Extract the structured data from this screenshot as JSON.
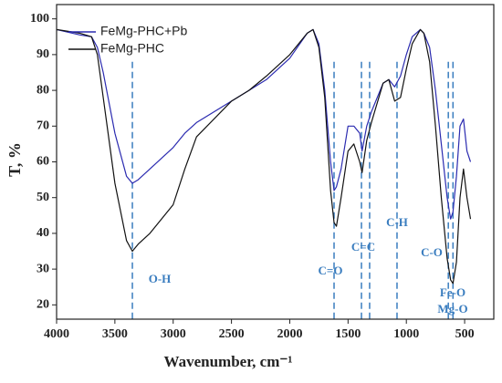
{
  "chart_data": {
    "type": "line",
    "xlabel": "Wavenumber, cm⁻¹",
    "ylabel": "T, %",
    "xlim": [
      4000,
      250
    ],
    "ylim": [
      16,
      104
    ],
    "xticks": [
      4000,
      3500,
      3000,
      2500,
      2000,
      1500,
      1000,
      500
    ],
    "yticks": [
      20,
      30,
      40,
      50,
      60,
      70,
      80,
      90,
      100
    ],
    "legend": "upper left",
    "x": [
      4000,
      3800,
      3700,
      3650,
      3600,
      3500,
      3400,
      3350,
      3300,
      3200,
      3000,
      2900,
      2800,
      2500,
      2350,
      2200,
      2000,
      1850,
      1800,
      1750,
      1700,
      1650,
      1620,
      1600,
      1560,
      1500,
      1450,
      1400,
      1380,
      1340,
      1300,
      1200,
      1150,
      1100,
      1050,
      1000,
      950,
      880,
      850,
      800,
      750,
      700,
      650,
      620,
      600,
      570,
      540,
      510,
      480,
      450
    ],
    "series": [
      {
        "name": "FeMg-PHC+Pb",
        "color": "#2b2bb0",
        "values": [
          97,
          95.5,
          95,
          92,
          85,
          68,
          56,
          54,
          55,
          58,
          64,
          68,
          71,
          77,
          80,
          83,
          89,
          96,
          97,
          93,
          80,
          60,
          52,
          53,
          58,
          70,
          70,
          68,
          63,
          70,
          74,
          82,
          83,
          81,
          84,
          90,
          95,
          97,
          96,
          92,
          80,
          65,
          50,
          44,
          46,
          56,
          70,
          72,
          63,
          60
        ]
      },
      {
        "name": "FeMg-PHC",
        "color": "#111111",
        "values": [
          97,
          96,
          95,
          90,
          78,
          54,
          38,
          35,
          37,
          40,
          48,
          58,
          67,
          77,
          80,
          84,
          90,
          96,
          97,
          92,
          78,
          52,
          43,
          42,
          50,
          63,
          65,
          60,
          57,
          66,
          71,
          82,
          83,
          77,
          78,
          86,
          93,
          97,
          96,
          88,
          70,
          50,
          33,
          27,
          26,
          32,
          50,
          58,
          50,
          44
        ]
      }
    ],
    "vlines": [
      3350,
      1620,
      1385,
      1315,
      1080,
      640,
      600
    ],
    "annotations": [
      "O-H",
      "C=O",
      "C=C",
      "C-H",
      "C-O",
      "Fe-O",
      "Mg-O"
    ]
  }
}
